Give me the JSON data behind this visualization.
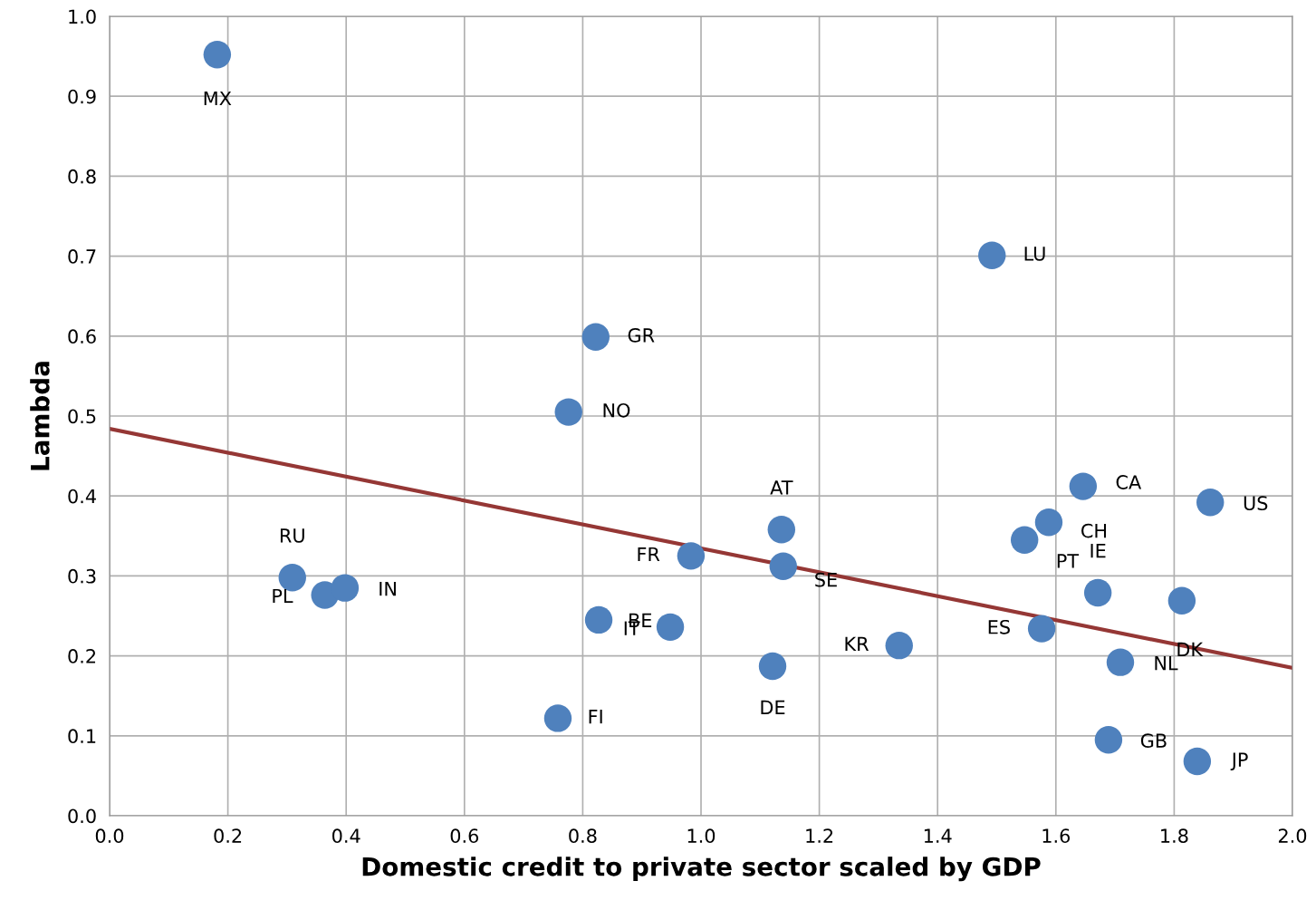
{
  "chart_data": {
    "type": "scatter",
    "xlabel": "Domestic credit to private sector scaled by GDP",
    "ylabel": "Lambda",
    "xlim": [
      0.0,
      2.0
    ],
    "xticks": [
      {
        "value": 0,
        "label": "0.0"
      },
      0.2,
      0.4,
      0.6,
      0.8,
      {
        "value": 1,
        "label": "1.0"
      },
      1.2,
      1.4,
      1.6,
      1.8,
      {
        "value": 2,
        "label": "2.0"
      }
    ],
    "ylim": [
      0.0,
      1.0
    ],
    "yticks": [
      {
        "value": 0,
        "label": "0.0"
      },
      0.1,
      0.2,
      0.3,
      0.4,
      0.5,
      0.6,
      0.7,
      0.8,
      0.9,
      {
        "value": 1,
        "label": "1.0"
      }
    ],
    "grid": true,
    "legend": false,
    "marker": "circle",
    "series": [
      {
        "color": "#4f81bd",
        "x": [
          0.182,
          1.492,
          0.822,
          0.776,
          1.136,
          0.983,
          1.139,
          1.646,
          1.861,
          1.588,
          1.547,
          1.671,
          1.813,
          1.576,
          1.709,
          1.689,
          1.839,
          1.335,
          1.121,
          0.758,
          0.948,
          0.827,
          0.309,
          0.364,
          0.398
        ],
        "values": [
          0.952,
          0.701,
          0.599,
          0.505,
          0.358,
          0.325,
          0.312,
          0.412,
          0.392,
          0.367,
          0.345,
          0.279,
          0.269,
          0.234,
          0.192,
          0.095,
          0.068,
          0.213,
          0.187,
          0.122,
          0.236,
          0.245,
          0.298,
          0.276,
          0.285
        ]
      },
      {
        "type": "line",
        "color": "#953735",
        "marker": "none",
        "line_style": "solid",
        "x": [
          0.0,
          2.0
        ],
        "values": [
          0.484,
          0.185
        ]
      }
    ],
    "annotations": [
      {
        "text": "MX",
        "x": 0.182,
        "y": 0.952
      },
      {
        "text": "LU",
        "x": 1.492,
        "y": 0.701
      },
      {
        "text": "GR",
        "x": 0.822,
        "y": 0.599
      },
      {
        "text": "NO",
        "x": 0.776,
        "y": 0.505
      },
      {
        "text": "AT",
        "x": 1.136,
        "y": 0.358
      },
      {
        "text": "FR",
        "x": 0.983,
        "y": 0.325
      },
      {
        "text": "SE",
        "x": 1.139,
        "y": 0.312
      },
      {
        "text": "CA",
        "x": 1.646,
        "y": 0.412
      },
      {
        "text": "US",
        "x": 1.861,
        "y": 0.392
      },
      {
        "text": "CH",
        "x": 1.588,
        "y": 0.367
      },
      {
        "text": "PT",
        "x": 1.547,
        "y": 0.345
      },
      {
        "text": "IE",
        "x": 1.671,
        "y": 0.279
      },
      {
        "text": "DK",
        "x": 1.813,
        "y": 0.269
      },
      {
        "text": "ES",
        "x": 1.576,
        "y": 0.234
      },
      {
        "text": "NL",
        "x": 1.709,
        "y": 0.192
      },
      {
        "text": "GB",
        "x": 1.689,
        "y": 0.095
      },
      {
        "text": "JP",
        "x": 1.839,
        "y": 0.068
      },
      {
        "text": "KR",
        "x": 1.335,
        "y": 0.213
      },
      {
        "text": "DE",
        "x": 1.121,
        "y": 0.187
      },
      {
        "text": "FI",
        "x": 0.758,
        "y": 0.122
      },
      {
        "text": "BE",
        "x": 0.948,
        "y": 0.236
      },
      {
        "text": "IT",
        "x": 0.827,
        "y": 0.245
      },
      {
        "text": "RU",
        "x": 0.309,
        "y": 0.298
      },
      {
        "text": "PL",
        "x": 0.364,
        "y": 0.276
      },
      {
        "text": "IN",
        "x": 0.398,
        "y": 0.285
      }
    ]
  }
}
